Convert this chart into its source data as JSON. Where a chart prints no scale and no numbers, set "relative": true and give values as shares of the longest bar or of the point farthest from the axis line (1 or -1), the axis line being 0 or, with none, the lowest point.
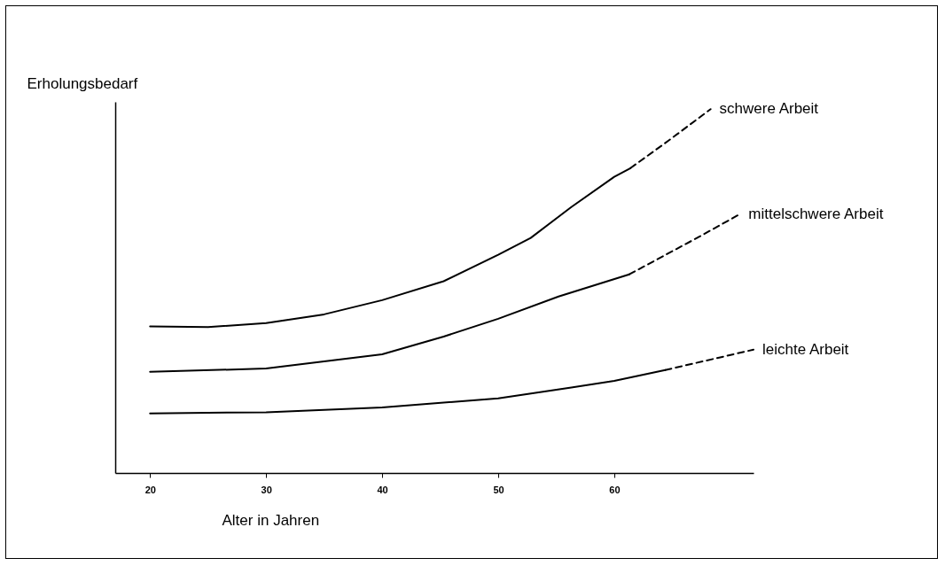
{
  "chart_data": {
    "type": "line",
    "relative": true,
    "xlabel": "Alter in Jahren",
    "ylabel": "Erholungsbedarf",
    "xlim": [
      17,
      72
    ],
    "xticks": [
      20,
      30,
      40,
      50,
      60
    ],
    "grid": false,
    "legend": false,
    "marker": "none",
    "series": [
      {
        "name": "schwere Arbeit",
        "color": "#000000",
        "line_style": "solid",
        "x": [
          20,
          25,
          30,
          35,
          40,
          45.3,
          50,
          52.8,
          56.3,
          60,
          61.4
        ],
        "values": [
          0.403,
          0.401,
          0.412,
          0.436,
          0.475,
          0.527,
          0.6,
          0.646,
          0.731,
          0.814,
          0.838
        ]
      },
      {
        "color": "#000000",
        "line_style": "dashed",
        "x": [
          61.4,
          64.7,
          68.3
        ],
        "values": [
          0.838,
          0.914,
          1.0
        ]
      },
      {
        "name": "mittelschwere Arbeit",
        "color": "#000000",
        "line_style": "solid",
        "x": [
          20,
          30,
          40,
          45.3,
          50,
          55.2,
          61.3
        ],
        "values": [
          0.278,
          0.287,
          0.326,
          0.375,
          0.424,
          0.485,
          0.546
        ]
      },
      {
        "color": "#000000",
        "line_style": "dashed",
        "x": [
          61.3,
          67.3,
          70.8
        ],
        "values": [
          0.546,
          0.649,
          0.711
        ]
      },
      {
        "name": "leichte Arbeit",
        "color": "#000000",
        "line_style": "solid",
        "x": [
          20,
          30,
          40,
          50,
          56.3,
          60,
          64.4
        ],
        "values": [
          0.164,
          0.167,
          0.18,
          0.205,
          0.235,
          0.253,
          0.283
        ]
      },
      {
        "color": "#000000",
        "line_style": "dashed",
        "x": [
          64.4,
          72
        ],
        "values": [
          0.283,
          0.339
        ]
      }
    ]
  }
}
